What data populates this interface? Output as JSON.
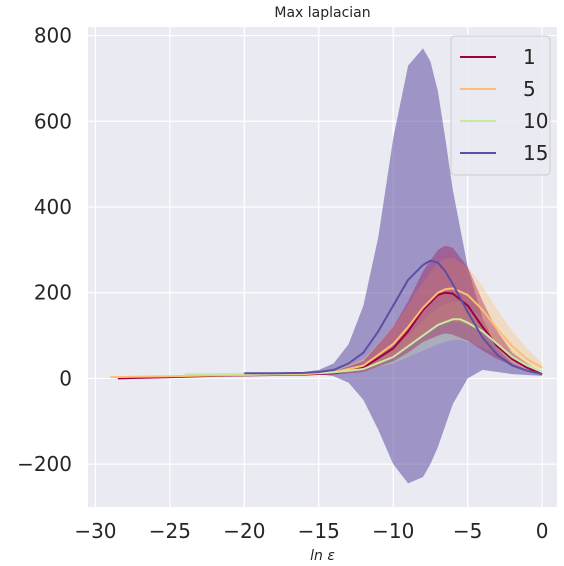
{
  "chart_data": {
    "type": "line",
    "title": "Max laplacian",
    "xlabel": "ln ε",
    "ylabel": "",
    "xlim": [
      -30.5,
      1
    ],
    "ylim": [
      -300,
      820
    ],
    "xticks": [
      -30,
      -25,
      -20,
      -15,
      -10,
      -5,
      0
    ],
    "xtick_labels": [
      "−30",
      "−25",
      "−20",
      "−15",
      "−10",
      "−5",
      "0"
    ],
    "yticks": [
      -200,
      0,
      200,
      400,
      600,
      800
    ],
    "ytick_labels": [
      "−200",
      "0",
      "200",
      "400",
      "600",
      "800"
    ],
    "grid": true,
    "legend_position": "top-right",
    "colors": {
      "plot_bg": "#eaeaf2",
      "grid": "#ffffff"
    },
    "series": [
      {
        "name": "1",
        "color": "#9e0142",
        "x": [
          -28.5,
          -25,
          -22,
          -20,
          -18,
          -16,
          -14,
          -12,
          -10,
          -9,
          -8,
          -7,
          -6.5,
          -6,
          -5,
          -4,
          -3,
          -2,
          -1,
          0
        ],
        "y": [
          0,
          3,
          6,
          7,
          8,
          9,
          12,
          25,
          70,
          110,
          160,
          195,
          200,
          198,
          170,
          120,
          75,
          45,
          25,
          10
        ],
        "lower": [
          0,
          2,
          5,
          6,
          7,
          8,
          9,
          15,
          40,
          60,
          85,
          100,
          105,
          102,
          88,
          65,
          45,
          30,
          18,
          8
        ],
        "upper": [
          0,
          4,
          7,
          8,
          9,
          10,
          16,
          40,
          120,
          180,
          250,
          300,
          310,
          305,
          260,
          180,
          110,
          60,
          35,
          12
        ]
      },
      {
        "name": "5",
        "color": "#fdbf6f",
        "x": [
          -29,
          -25,
          -22,
          -20,
          -18,
          -16,
          -14,
          -12,
          -10,
          -9,
          -8,
          -7,
          -6.5,
          -6,
          -5,
          -4,
          -3,
          -2,
          -1,
          0
        ],
        "y": [
          3,
          5,
          7,
          8,
          9,
          10,
          14,
          30,
          80,
          120,
          165,
          200,
          208,
          210,
          195,
          160,
          115,
          75,
          45,
          25
        ],
        "lower": [
          2,
          4,
          6,
          7,
          8,
          9,
          11,
          20,
          50,
          75,
          100,
          125,
          130,
          132,
          125,
          105,
          80,
          55,
          35,
          20
        ],
        "upper": [
          4,
          6,
          8,
          9,
          10,
          11,
          18,
          45,
          120,
          170,
          225,
          270,
          280,
          282,
          260,
          215,
          160,
          110,
          70,
          35
        ]
      },
      {
        "name": "10",
        "color": "#c7e9a0",
        "x": [
          -24,
          -22,
          -20,
          -18,
          -16,
          -14,
          -12,
          -10,
          -9,
          -8,
          -7,
          -6,
          -5.5,
          -5,
          -4,
          -3,
          -2,
          -1,
          0
        ],
        "y": [
          10,
          10,
          11,
          11,
          12,
          14,
          22,
          50,
          75,
          100,
          125,
          138,
          138,
          130,
          110,
          80,
          50,
          30,
          15
        ],
        "lower": [
          9,
          9,
          10,
          10,
          11,
          12,
          17,
          35,
          50,
          65,
          80,
          90,
          90,
          85,
          72,
          55,
          35,
          22,
          12
        ],
        "upper": [
          11,
          11,
          12,
          12,
          13,
          16,
          28,
          68,
          100,
          135,
          165,
          180,
          178,
          168,
          140,
          105,
          68,
          40,
          18
        ]
      },
      {
        "name": "15",
        "color": "#5e4fa2",
        "x": [
          -20,
          -18,
          -16,
          -15,
          -14,
          -13,
          -12,
          -11,
          -10,
          -9,
          -8,
          -7.5,
          -7,
          -6.5,
          -6,
          -5,
          -4,
          -3,
          -2,
          -1,
          0
        ],
        "y": [
          12,
          12,
          13,
          15,
          20,
          35,
          60,
          110,
          170,
          230,
          265,
          275,
          270,
          250,
          220,
          155,
          95,
          55,
          30,
          18,
          10
        ],
        "lower": [
          11,
          11,
          11,
          10,
          5,
          -10,
          -50,
          -120,
          -200,
          -245,
          -230,
          -200,
          -160,
          -110,
          -60,
          0,
          20,
          15,
          10,
          8,
          6
        ],
        "upper": [
          13,
          13,
          15,
          20,
          35,
          80,
          170,
          330,
          560,
          730,
          770,
          740,
          670,
          560,
          440,
          260,
          140,
          70,
          35,
          20,
          12
        ]
      }
    ]
  }
}
